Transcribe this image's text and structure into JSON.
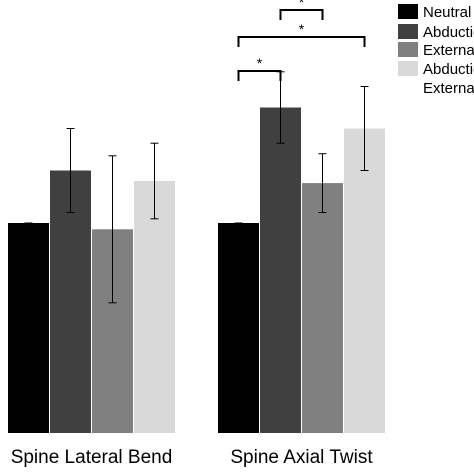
{
  "chart_data": {
    "type": "bar",
    "categories": [
      "Spine Lateral Bend",
      "Spine Axial Twist"
    ],
    "series": [
      {
        "name": "Neutral",
        "color": "#000000",
        "values": [
          1.0,
          1.0
        ],
        "errors": [
          0.0,
          0.0
        ]
      },
      {
        "name": "Abduction",
        "color": "#404040",
        "values": [
          1.25,
          1.55
        ],
        "errors": [
          0.2,
          0.17
        ]
      },
      {
        "name": "External",
        "color": "#808080",
        "values": [
          0.97,
          1.19
        ],
        "errors": [
          0.35,
          0.14
        ]
      },
      {
        "name": "Abduction + External",
        "color": "#d9d9d9",
        "values": [
          1.2,
          1.45
        ],
        "errors": [
          0.18,
          0.2
        ]
      }
    ],
    "ylim": [
      0,
      1.8
    ],
    "legend": {
      "position": "top-right",
      "entries": [
        {
          "lines": [
            "Neutral"
          ]
        },
        {
          "lines": [
            "Abduction"
          ]
        },
        {
          "lines": [
            "External"
          ]
        },
        {
          "lines": [
            "Abduction +",
            "External"
          ]
        }
      ]
    },
    "significance": [
      {
        "category": "Spine Axial Twist",
        "from": 0,
        "to": 1,
        "label": "*"
      },
      {
        "category": "Spine Axial Twist",
        "from": 0,
        "to": 3,
        "label": "*"
      },
      {
        "category": "Spine Axial Twist",
        "from": 1,
        "to": 2,
        "label": "*"
      }
    ],
    "grid": false,
    "title": "",
    "xlabel": "",
    "ylabel": ""
  }
}
